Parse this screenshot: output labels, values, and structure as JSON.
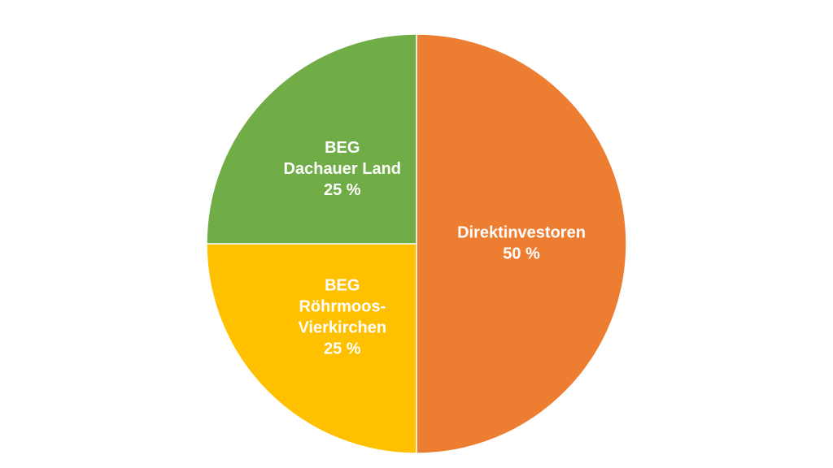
{
  "chart_data": {
    "type": "pie",
    "categories": [
      [
        "Direktinvestoren"
      ],
      [
        "BEG",
        "Röhrmoos-",
        "Vierkirchen"
      ],
      [
        "BEG",
        "Dachauer Land"
      ]
    ],
    "values": [
      50,
      25,
      25
    ],
    "value_labels": [
      "50 %",
      "25 %",
      "25 %"
    ],
    "colors": [
      "#ED7D31",
      "#FFC000",
      "#70AD47"
    ]
  }
}
